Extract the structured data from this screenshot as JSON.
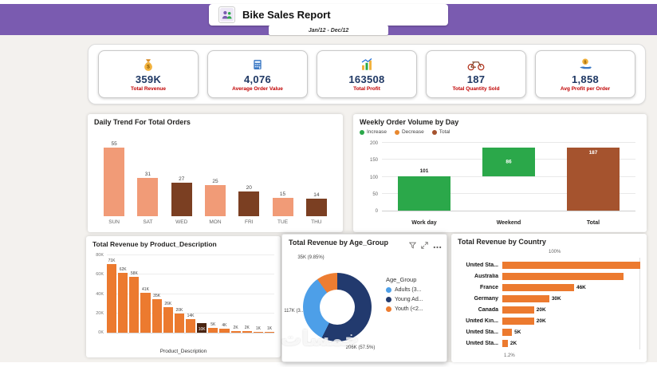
{
  "header": {
    "title": "Bike Sales Report",
    "date_range": "Jan/12 -  Dec/12"
  },
  "kpis": [
    {
      "value": "359K",
      "label": "Total Revenue",
      "icon": "money-bag-icon"
    },
    {
      "value": "4,076",
      "label": "Average Order Value",
      "icon": "calculator-icon"
    },
    {
      "value": "163508",
      "label": "Total Profit",
      "icon": "profit-chart-icon"
    },
    {
      "value": "187",
      "label": "Total Quantity Sold",
      "icon": "bicycle-icon"
    },
    {
      "value": "1,858",
      "label": "Avg Profit per Order",
      "icon": "hand-coin-icon"
    }
  ],
  "colors": {
    "header_purple": "#7A5BB0",
    "kpi_value_navy": "#1F3864",
    "kpi_label_red": "#C00000",
    "salmon": "#F19B77",
    "dark_brown": "#7B3F22",
    "green": "#2BA84A",
    "decrease_orange": "#E8882F",
    "total_brown": "#A5532E",
    "orange": "#EC7A2F",
    "product_dark": "#4A2412",
    "donut_navy": "#223A6E",
    "donut_blue": "#4D9FE8",
    "donut_orange": "#ED7D31"
  },
  "chart_data": [
    {
      "id": "daily_trend",
      "type": "bar",
      "title": "Daily Trend For Total Orders",
      "categories": [
        "SUN",
        "SAT",
        "WED",
        "MON",
        "FRI",
        "TUE",
        "THU"
      ],
      "values": [
        55,
        31,
        27,
        25,
        20,
        15,
        14
      ],
      "bar_palette": [
        "salmon",
        "salmon",
        "dark_brown",
        "salmon",
        "dark_brown",
        "salmon",
        "dark_brown"
      ],
      "ylim": [
        0,
        55
      ],
      "grid": false
    },
    {
      "id": "weekly_volume",
      "type": "bar",
      "subtype": "waterfall",
      "title": "Weekly Order Volume by Day",
      "legend": [
        {
          "label": "Increase",
          "color": "green"
        },
        {
          "label": "Decrease",
          "color": "decrease_orange"
        },
        {
          "label": "Total",
          "color": "total_brown"
        }
      ],
      "categories": [
        "Work day",
        "Weekend",
        "Total"
      ],
      "bars": [
        {
          "label": "Work day",
          "start": 0,
          "value": 101,
          "color": "green",
          "value_label": "101",
          "label_style": "above"
        },
        {
          "label": "Weekend",
          "start": 101,
          "value": 86,
          "color": "green",
          "value_label": "86",
          "label_style": "inside"
        },
        {
          "label": "Total",
          "start": 0,
          "value": 187,
          "color": "total_brown",
          "value_label": "187",
          "label_style": "inside-top"
        }
      ],
      "yticks": [
        0,
        50,
        100,
        150,
        200
      ],
      "ylim": [
        0,
        200
      ],
      "grid": true,
      "legend_position": "top"
    },
    {
      "id": "product_revenue",
      "type": "bar",
      "title": "Total Revenue by Product_Description",
      "xlabel": "Product_Description",
      "ylabel": "",
      "values": [
        71,
        62,
        58,
        41,
        35,
        26,
        20,
        14,
        10,
        5,
        4,
        2,
        2,
        1,
        1
      ],
      "labels": [
        "71K",
        "62K",
        "58K",
        "41K",
        "35K",
        "26K",
        "20K",
        "14K",
        "10K",
        "5K",
        "4K",
        "2K",
        "2K",
        "1K",
        "1K"
      ],
      "dark_index": 8,
      "yticks": [
        "80K",
        "60K",
        "40K",
        "20K",
        "0K"
      ],
      "ylim": [
        0,
        80
      ],
      "grid": true
    },
    {
      "id": "age_group",
      "type": "pie",
      "title": "Total Revenue by Age_Group",
      "legend_title": "Age_Group",
      "slices": [
        {
          "name": "Young Ad...",
          "value_label": "206K (57.5%)",
          "pct": 57.5,
          "color": "donut_navy"
        },
        {
          "name": "Adults (3...",
          "value_label": "117K (3...)",
          "pct": 32.65,
          "color": "donut_blue"
        },
        {
          "name": "Youth (<2...",
          "value_label": "35K (9.85%)",
          "pct": 9.85,
          "color": "donut_orange"
        }
      ],
      "legend": [
        {
          "label": "Adults (3...",
          "color": "donut_blue"
        },
        {
          "label": "Young Ad...",
          "color": "donut_navy"
        },
        {
          "label": "Youth (<2...",
          "color": "donut_orange"
        }
      ],
      "legend_position": "right"
    },
    {
      "id": "country_revenue",
      "type": "bar",
      "subtype": "horizontal",
      "title": "Total Revenue by Country",
      "rows": [
        {
          "label": "United Sta...",
          "value_label": "",
          "width_pct": 100
        },
        {
          "label": "Australia",
          "value_label": "",
          "width_pct": 88
        },
        {
          "label": "France",
          "value_label": "46K",
          "width_pct": 52
        },
        {
          "label": "Germany",
          "value_label": "30K",
          "width_pct": 34
        },
        {
          "label": "Canada",
          "value_label": "20K",
          "width_pct": 23
        },
        {
          "label": "United Kin...",
          "value_label": "20K",
          "width_pct": 23
        },
        {
          "label": "United Sta...",
          "value_label": "5K",
          "width_pct": 7
        },
        {
          "label": "United Sta...",
          "value_label": "2K",
          "width_pct": 4
        }
      ],
      "axis_top_label": "100%",
      "axis_bottom_label": "1.2%"
    }
  ],
  "watermark": "خمسات"
}
